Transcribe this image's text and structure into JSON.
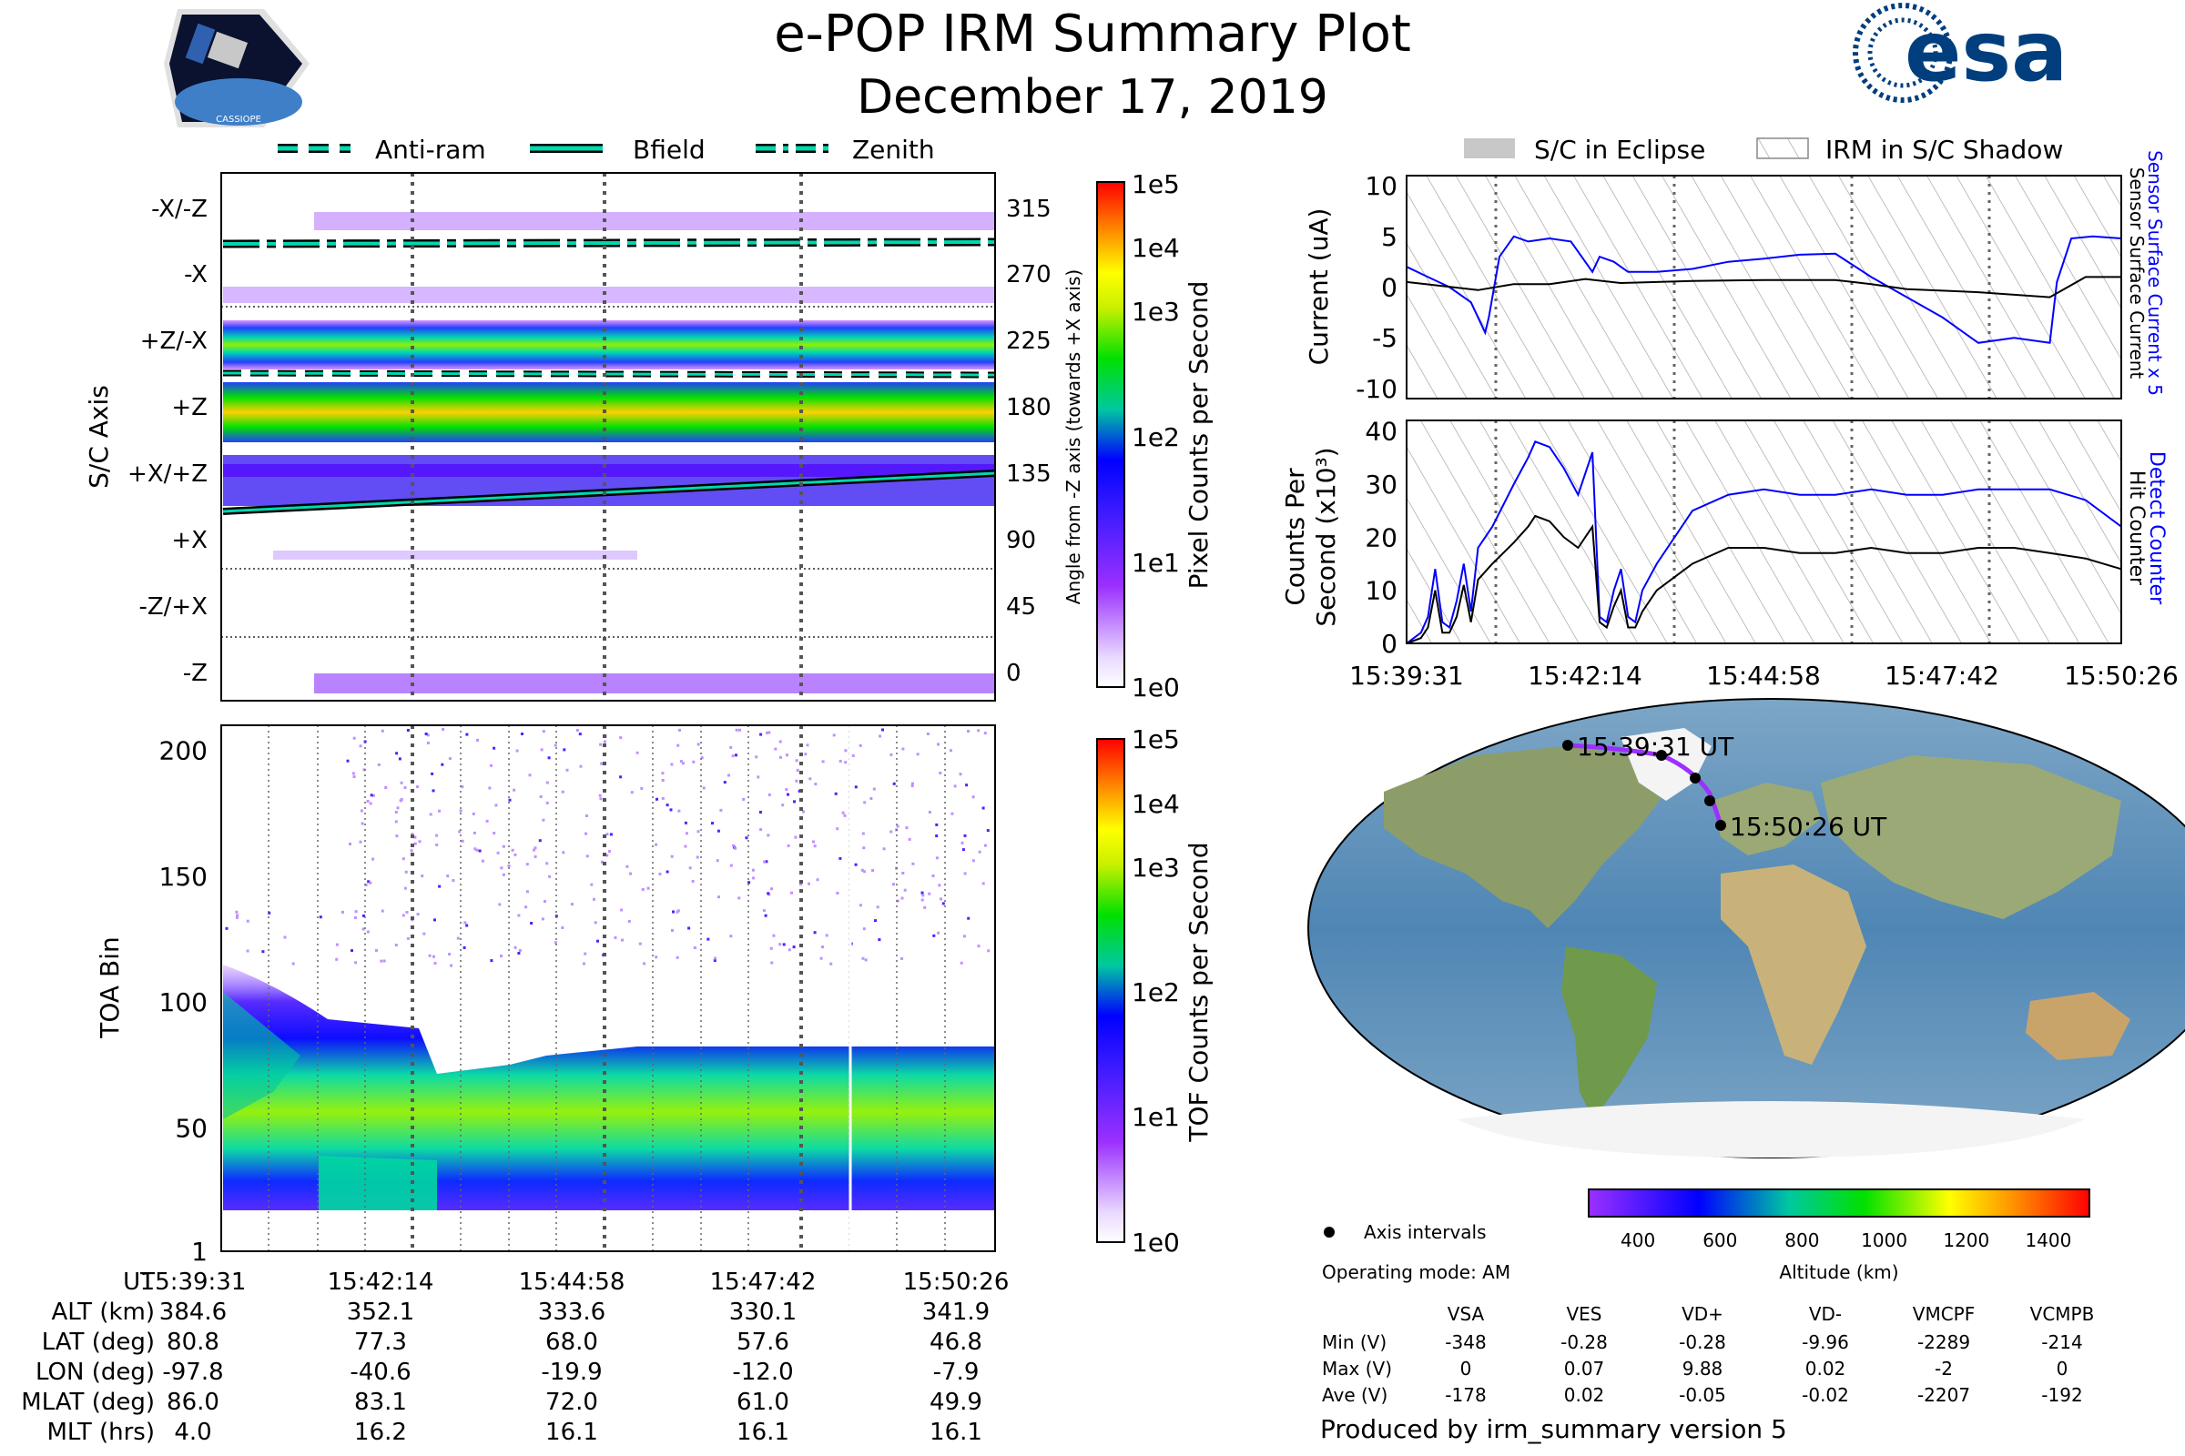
{
  "title": "e-POP IRM Summary Plot",
  "date": "December 17, 2019",
  "logos": {
    "cassiope_label": "CASSIOPE",
    "esa": "esa"
  },
  "left_legend": [
    "Anti-ram",
    "Bfield",
    "Zenith"
  ],
  "right_legend": [
    "S/C in Eclipse",
    "IRM in S/C Shadow"
  ],
  "colors": {
    "series_blue": "#0000ff",
    "series_black": "#000000",
    "track": "#9b30ff"
  },
  "chart_data": [
    {
      "id": "sc_axis_heatmap",
      "type": "heatmap",
      "ylabel": "S/C Axis",
      "ylabel_right": "Angle from -Z axis (towards +X axis)",
      "y_ticks_left": [
        "-X/-Z",
        "-X",
        "+Z/-X",
        "+Z",
        "+X/+Z",
        "+X",
        "-Z/+X",
        "-Z"
      ],
      "y_ticks_right": [
        "315",
        "270",
        "225",
        "180",
        "135",
        "90",
        "45",
        "0"
      ],
      "colorbar_label": "Pixel Counts per Second",
      "colorbar_ticks": [
        "1e5",
        "1e4",
        "1e3",
        "1e2",
        "1e1",
        "1e0"
      ]
    },
    {
      "id": "toa_heatmap",
      "type": "heatmap",
      "ylabel": "TOA Bin",
      "yticks": [
        "200",
        "150",
        "100",
        "50",
        "1"
      ],
      "ylim": [
        1,
        210
      ],
      "colorbar_label": "TOF Counts per Second",
      "colorbar_ticks": [
        "1e5",
        "1e4",
        "1e3",
        "1e2",
        "1e1",
        "1e0"
      ]
    },
    {
      "id": "current",
      "type": "line",
      "ylabel": "Current (uA)",
      "ylim": [
        -11,
        11
      ],
      "yticks": [
        "10",
        "5",
        "0",
        "-5",
        "-10"
      ],
      "right_label_blue": "Sensor Surface Current x 5",
      "right_label_black": "Sensor Surface Current",
      "series": [
        {
          "name": "Sensor Surface Current x 5",
          "x": [
            0,
            0.03,
            0.06,
            0.09,
            0.11,
            0.115,
            0.13,
            0.15,
            0.17,
            0.2,
            0.23,
            0.245,
            0.26,
            0.27,
            0.29,
            0.31,
            0.35,
            0.4,
            0.45,
            0.5,
            0.55,
            0.6,
            0.65,
            0.7,
            0.75,
            0.8,
            0.85,
            0.9,
            0.91,
            0.93,
            0.96,
            1.0
          ],
          "values": [
            2,
            1,
            0,
            -1.5,
            -4.5,
            -3,
            3,
            5,
            4.5,
            4.8,
            4.5,
            3,
            1.5,
            3,
            2.5,
            1.5,
            1.5,
            1.8,
            2.5,
            2.8,
            3.2,
            3.3,
            1,
            -1,
            -3,
            -5.5,
            -5,
            -5.5,
            0.5,
            4.8,
            5,
            4.8
          ]
        },
        {
          "name": "Sensor Surface Current",
          "x": [
            0,
            0.1,
            0.15,
            0.2,
            0.25,
            0.3,
            0.4,
            0.5,
            0.6,
            0.65,
            0.7,
            0.8,
            0.9,
            0.95,
            1.0
          ],
          "values": [
            0.5,
            -0.3,
            0.3,
            0.3,
            0.8,
            0.4,
            0.6,
            0.7,
            0.7,
            0.3,
            -0.2,
            -0.5,
            -1,
            1,
            1
          ]
        }
      ]
    },
    {
      "id": "counts",
      "type": "line",
      "ylabel": "Counts Per Second (x10³)",
      "ylim": [
        0,
        42
      ],
      "yticks": [
        "40",
        "30",
        "20",
        "10",
        "0"
      ],
      "right_label_blue": "Detect Counter",
      "right_label_black": "Hit Counter",
      "xticks": [
        "15:39:31",
        "15:42:14",
        "15:44:58",
        "15:47:42",
        "15:50:26"
      ],
      "series": [
        {
          "name": "Detect Counter",
          "x": [
            0,
            0.02,
            0.03,
            0.04,
            0.05,
            0.06,
            0.07,
            0.08,
            0.09,
            0.1,
            0.12,
            0.15,
            0.17,
            0.18,
            0.2,
            0.22,
            0.24,
            0.26,
            0.27,
            0.28,
            0.29,
            0.3,
            0.31,
            0.32,
            0.33,
            0.35,
            0.4,
            0.45,
            0.5,
            0.55,
            0.6,
            0.65,
            0.7,
            0.75,
            0.8,
            0.85,
            0.9,
            0.95,
            1.0
          ],
          "values": [
            0,
            2,
            5,
            14,
            4,
            3,
            8,
            15,
            6,
            18,
            22,
            30,
            35,
            38,
            37,
            33,
            28,
            36,
            5,
            4,
            10,
            14,
            5,
            4,
            10,
            15,
            25,
            28,
            29,
            28,
            28,
            29,
            28,
            28,
            29,
            29,
            29,
            27,
            22
          ]
        },
        {
          "name": "Hit Counter",
          "x": [
            0,
            0.02,
            0.03,
            0.04,
            0.05,
            0.06,
            0.07,
            0.08,
            0.09,
            0.1,
            0.12,
            0.15,
            0.17,
            0.18,
            0.2,
            0.22,
            0.24,
            0.26,
            0.27,
            0.28,
            0.29,
            0.3,
            0.31,
            0.32,
            0.33,
            0.35,
            0.4,
            0.45,
            0.5,
            0.55,
            0.6,
            0.65,
            0.7,
            0.75,
            0.8,
            0.85,
            0.9,
            0.95,
            1.0
          ],
          "values": [
            0,
            1,
            3,
            10,
            2,
            2,
            5,
            11,
            4,
            12,
            15,
            19,
            22,
            24,
            23,
            20,
            18,
            22,
            4,
            3,
            7,
            10,
            3,
            3,
            6,
            10,
            15,
            18,
            18,
            17,
            17,
            18,
            17,
            17,
            18,
            18,
            17,
            16,
            14
          ]
        }
      ]
    },
    {
      "id": "altitude_colorbar",
      "type": "colorbar",
      "label": "Altitude (km)",
      "ticks": [
        "400",
        "600",
        "800",
        "1000",
        "1200",
        "1400"
      ],
      "range": [
        280,
        1500
      ],
      "tick_values": [
        400,
        600,
        800,
        1000,
        1200,
        1400
      ]
    }
  ],
  "map": {
    "start_label": "15:39:31 UT",
    "end_label": "15:50:26 UT",
    "legend": "Axis intervals",
    "operating_mode": "Operating mode: AM"
  },
  "bottom_table": {
    "row_labels": [
      "UT",
      "ALT (km)",
      "LAT (deg)",
      "LON (deg)",
      "MLAT (deg)",
      "MLT (hrs)"
    ],
    "columns": [
      [
        "15:39:31",
        "384.6",
        "80.8",
        "-97.8",
        "86.0",
        "4.0"
      ],
      [
        "15:42:14",
        "352.1",
        "77.3",
        "-40.6",
        "83.1",
        "16.2"
      ],
      [
        "15:44:58",
        "333.6",
        "68.0",
        "-19.9",
        "72.0",
        "16.1"
      ],
      [
        "15:47:42",
        "330.1",
        "57.6",
        "-12.0",
        "61.0",
        "16.1"
      ],
      [
        "15:50:26",
        "341.9",
        "46.8",
        "-7.9",
        "49.9",
        "16.1"
      ]
    ]
  },
  "voltage_table": {
    "headers": [
      "VSA",
      "VES",
      "VD+",
      "VD-",
      "VMCPF",
      "VCMPB"
    ],
    "row_labels": [
      "Min (V)",
      "Max (V)",
      "Ave (V)"
    ],
    "rows": [
      [
        "-348",
        "-0.28",
        "-0.28",
        "-9.96",
        "-2289",
        "-214"
      ],
      [
        "0",
        "0.07",
        "9.88",
        "0.02",
        "-2",
        "0"
      ],
      [
        "-178",
        "0.02",
        "-0.05",
        "-0.02",
        "-2207",
        "-192"
      ]
    ]
  },
  "footer": "Produced by irm_summary version 5"
}
